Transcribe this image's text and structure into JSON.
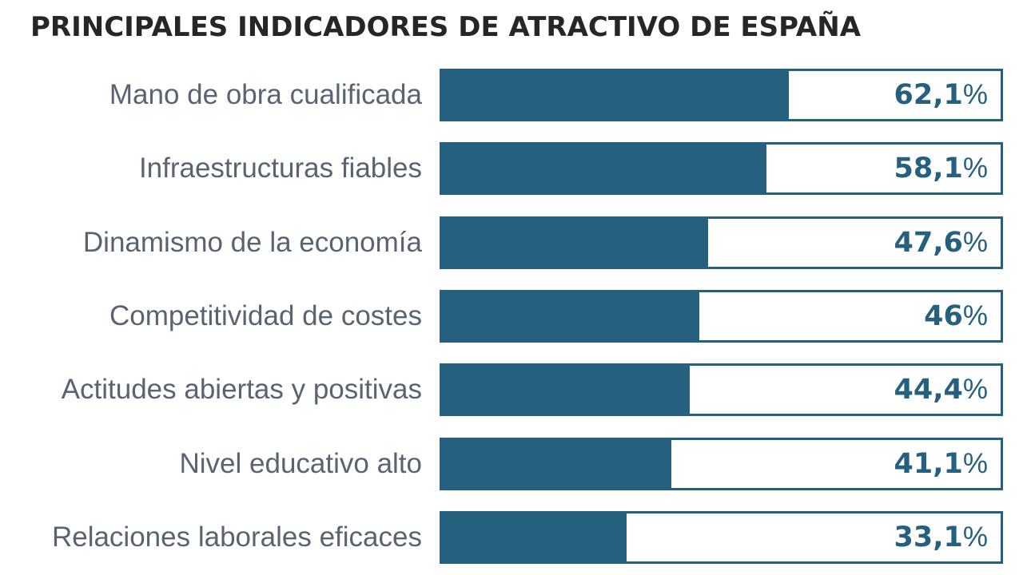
{
  "chart_data": {
    "type": "bar",
    "orientation": "horizontal",
    "title": "PRINCIPALES INDICADORES DE ATRACTIVO DE ESPAÑA",
    "xlabel": "",
    "ylabel": "",
    "xlim": [
      0,
      100
    ],
    "grid": false,
    "categories": [
      "Mano de obra cualificada",
      "Infraestructuras fiables",
      "Dinamismo de la economía",
      "Competitividad de costes",
      "Actitudes abiertas y positivas",
      "Nivel educativo alto",
      "Relaciones laborales eficaces"
    ],
    "values": [
      62.1,
      58.1,
      47.6,
      46,
      44.4,
      41.1,
      33.1
    ],
    "value_labels": [
      "62,1",
      "58,1",
      "47,6",
      "46",
      "44,4",
      "41,1",
      "33,1"
    ],
    "unit": "%",
    "colors": {
      "bar": "#26607f",
      "label_text": "#5a6470",
      "title_text": "#262626"
    }
  }
}
